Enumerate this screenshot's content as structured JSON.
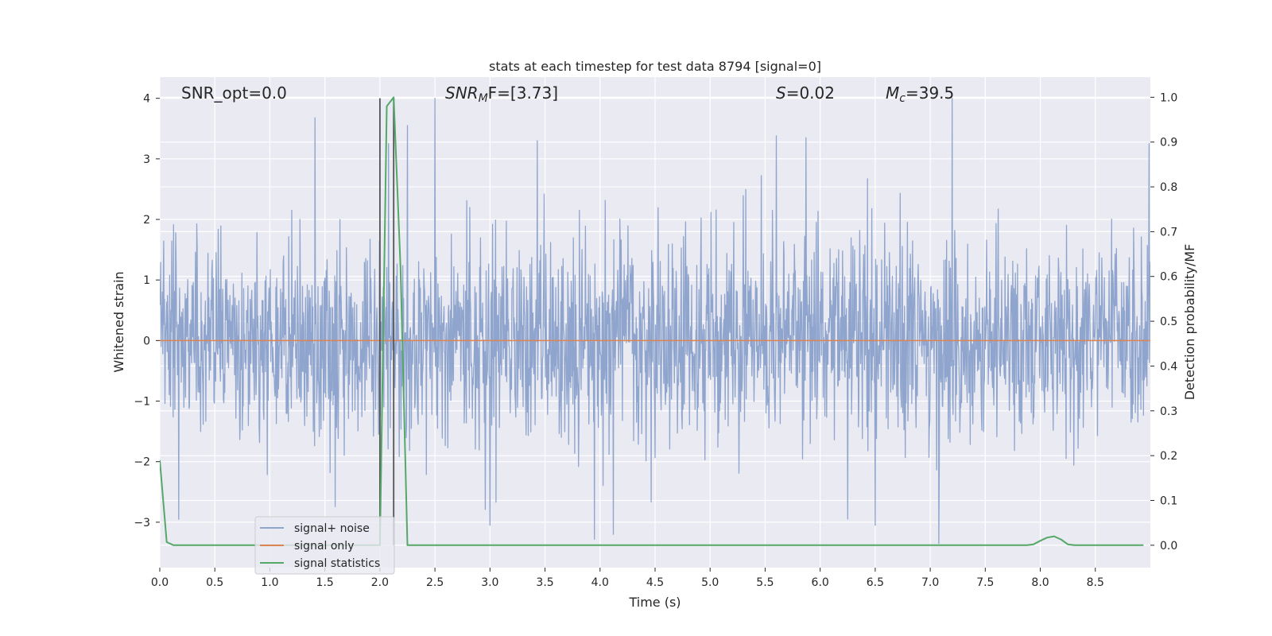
{
  "chart_data": {
    "type": "line",
    "title": "stats at each timestep for test data 8794 [signal=0]",
    "xlabel": "Time (s)",
    "ylabel": "Whitened strain",
    "y2label": "Detection probability/MF",
    "xlim": [
      0.0,
      9.0
    ],
    "ylim": [
      -3.75,
      4.35
    ],
    "y2lim": [
      -0.05,
      1.045
    ],
    "xticks": [
      0.0,
      0.5,
      1.0,
      1.5,
      2.0,
      2.5,
      3.0,
      3.5,
      4.0,
      4.5,
      5.0,
      5.5,
      6.0,
      6.5,
      7.0,
      7.5,
      8.0,
      8.5
    ],
    "yticks": [
      -3,
      -2,
      -1,
      0,
      1,
      2,
      3,
      4
    ],
    "y2ticks": [
      0.0,
      0.1,
      0.2,
      0.3,
      0.4,
      0.5,
      0.6,
      0.7,
      0.8,
      0.9,
      1.0
    ],
    "grid": true,
    "legend_position": "lower-left",
    "annotations": {
      "snr_opt": "SNR_opt=0.0",
      "snr_mf_base": "SNR",
      "snr_mf_sub": "M",
      "snr_mf_rest": "F=[3.73]",
      "s_base": "S",
      "s_rest": "=0.02",
      "mc_base": "M",
      "mc_sub": "c",
      "mc_rest": "=39.5"
    },
    "vlines": [
      {
        "x": 2.0,
        "y": [
          -3.38,
          4.0
        ]
      },
      {
        "x": 2.125,
        "y": [
          -3.38,
          4.0
        ]
      }
    ],
    "series": [
      {
        "name": "signal+ noise",
        "color": "#8fa5cd",
        "axis": "left",
        "sample_rate": 256,
        "noise_sigma": 0.82,
        "seed": 8794,
        "peaks": [
          {
            "x": 1.41,
            "y": 3.68
          },
          {
            "x": 2.08,
            "y": 3.25
          },
          {
            "x": 2.25,
            "y": 3.55
          },
          {
            "x": 2.5,
            "y": 4.0
          },
          {
            "x": 3.43,
            "y": 3.3
          },
          {
            "x": 5.6,
            "y": 3.38
          },
          {
            "x": 5.87,
            "y": 3.35
          },
          {
            "x": 7.2,
            "y": 4.0
          },
          {
            "x": 8.99,
            "y": 3.25
          },
          {
            "x": 0.17,
            "y": -2.95
          },
          {
            "x": 3.95,
            "y": -3.28
          },
          {
            "x": 4.12,
            "y": -3.2
          },
          {
            "x": 7.08,
            "y": -3.35
          },
          {
            "x": 3.0,
            "y": -3.05
          },
          {
            "x": 6.5,
            "y": -3.05
          }
        ]
      },
      {
        "name": "signal only",
        "color": "#dd8452",
        "axis": "left",
        "x": [
          0.0,
          9.0
        ],
        "y": [
          0.0,
          0.0
        ]
      },
      {
        "name": "signal statistics",
        "color": "#55a868",
        "axis": "right",
        "x": [
          0.0,
          0.0625,
          0.125,
          1.9375,
          2.0,
          2.0625,
          2.125,
          2.1875,
          2.25,
          7.8125,
          7.875,
          7.9375,
          8.0,
          8.0625,
          8.125,
          8.1875,
          8.25,
          8.3125,
          8.375,
          8.9375
        ],
        "y": [
          0.19,
          0.007,
          0.0,
          0.0,
          0.0,
          0.98,
          1.0,
          0.62,
          0.0,
          0.0,
          0.0,
          0.002,
          0.01,
          0.017,
          0.02,
          0.013,
          0.002,
          0.0,
          0.0,
          0.0
        ]
      }
    ]
  }
}
